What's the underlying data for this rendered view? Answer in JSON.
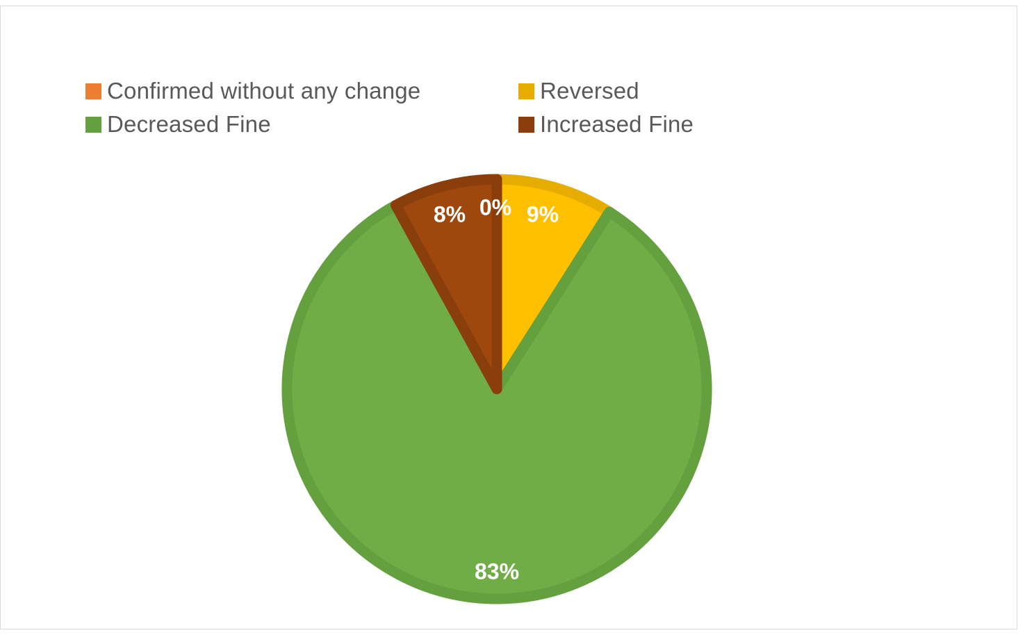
{
  "chart_data": {
    "type": "pie",
    "categories": [
      "Confirmed without any change",
      "Reversed",
      "Decreased Fine",
      "Increased Fine"
    ],
    "values": [
      0,
      9,
      83,
      8
    ],
    "value_labels": [
      "0%",
      "9%",
      "83%",
      "8%"
    ],
    "colors": [
      "#ED7D31",
      "#FFC000",
      "#70AD47",
      "#9E480E"
    ],
    "border_colors": [
      "#D96F2A",
      "#E6AC00",
      "#64A03E",
      "#8A3E0C"
    ],
    "legend_position": "top",
    "start_angle_deg": 0,
    "direction": "clockwise"
  }
}
